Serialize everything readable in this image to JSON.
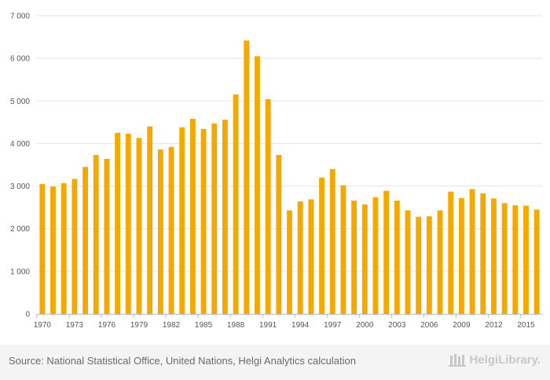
{
  "chart_data": {
    "type": "bar",
    "title": "",
    "xlabel": "",
    "ylabel": "",
    "ylim": [
      0,
      7000
    ],
    "yticks": [
      0,
      1000,
      2000,
      3000,
      4000,
      5000,
      6000,
      7000
    ],
    "ytick_labels": [
      "0",
      "1 000",
      "2 000",
      "3 000",
      "4 000",
      "5 000",
      "6 000",
      "7 000"
    ],
    "grid": true,
    "bar_color": "#F5A800",
    "categories": [
      1970,
      1971,
      1972,
      1973,
      1974,
      1975,
      1976,
      1977,
      1978,
      1979,
      1980,
      1981,
      1982,
      1983,
      1984,
      1985,
      1986,
      1987,
      1988,
      1989,
      1990,
      1991,
      1992,
      1993,
      1994,
      1995,
      1996,
      1997,
      1998,
      1999,
      2000,
      2001,
      2002,
      2003,
      2004,
      2005,
      2006,
      2007,
      2008,
      2009,
      2010,
      2011,
      2012,
      2013,
      2014,
      2015,
      2016
    ],
    "values": [
      3050,
      2990,
      3070,
      3170,
      3450,
      3730,
      3640,
      4250,
      4230,
      4130,
      4400,
      3860,
      3920,
      4380,
      4580,
      4340,
      4470,
      4560,
      5150,
      6420,
      6050,
      5040,
      3730,
      2430,
      2640,
      2690,
      3200,
      3400,
      3020,
      2660,
      2570,
      2740,
      2890,
      2660,
      2430,
      2280,
      2290,
      2430,
      2870,
      2720,
      2930,
      2830,
      2710,
      2600,
      2550,
      2540,
      2450
    ],
    "xtick_labels": [
      "1970",
      "1973",
      "1976",
      "1979",
      "1982",
      "1985",
      "1988",
      "1991",
      "1994",
      "1997",
      "2000",
      "2003",
      "2006",
      "2009",
      "2012",
      "2015"
    ]
  },
  "footer": {
    "source": "Source: National Statistical Office, United Nations, Helgi Analytics calculation",
    "brand": "HelgiLibrary."
  }
}
